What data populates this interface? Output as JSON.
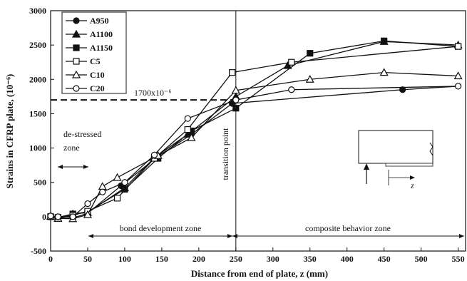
{
  "chart_data": {
    "type": "line",
    "title": "",
    "xlabel": "Distance from end of plate, z (mm)",
    "ylabel": "Strains in CFRP plate, (10⁻⁶)",
    "xlim": [
      0,
      560
    ],
    "ylim": [
      -500,
      3000
    ],
    "xticks": [
      "0",
      "50",
      "100",
      "150",
      "200",
      "250",
      "300",
      "350",
      "400",
      "450",
      "500",
      "550"
    ],
    "yticks": [
      "-500",
      "0",
      "500",
      "1000",
      "1500",
      "2000",
      "2500",
      "3000"
    ],
    "legend_position": "top-left",
    "series": [
      {
        "name": "A950",
        "marker": "filled-circle",
        "x": [
          0,
          10,
          30,
          50,
          95,
          145,
          190,
          245,
          475,
          550
        ],
        "y": [
          10,
          -20,
          -20,
          50,
          450,
          880,
          1200,
          1650,
          1850,
          1900
        ]
      },
      {
        "name": "A1100",
        "marker": "filled-triangle",
        "x": [
          0,
          10,
          30,
          50,
          100,
          140,
          185,
          250,
          320,
          450,
          550
        ],
        "y": [
          5,
          -25,
          40,
          60,
          420,
          860,
          1200,
          1750,
          2200,
          2550,
          2500
        ]
      },
      {
        "name": "A1150",
        "marker": "filled-square",
        "x": [
          0,
          10,
          30,
          50,
          100,
          145,
          190,
          250,
          350,
          450,
          550
        ],
        "y": [
          0,
          -10,
          40,
          70,
          400,
          850,
          1250,
          1580,
          2380,
          2560,
          2480
        ]
      },
      {
        "name": "C5",
        "marker": "open-square",
        "x": [
          0,
          10,
          30,
          50,
          90,
          140,
          185,
          245,
          325,
          550
        ],
        "y": [
          0,
          -20,
          20,
          80,
          270,
          850,
          1270,
          2100,
          2250,
          2480
        ]
      },
      {
        "name": "C10",
        "marker": "open-triangle",
        "x": [
          0,
          10,
          30,
          50,
          70,
          90,
          145,
          190,
          250,
          350,
          450,
          550
        ],
        "y": [
          5,
          -25,
          -30,
          30,
          440,
          570,
          890,
          1150,
          1840,
          2000,
          2100,
          2050
        ]
      },
      {
        "name": "C20",
        "marker": "open-circle",
        "x": [
          0,
          10,
          30,
          50,
          70,
          100,
          140,
          185,
          250,
          325,
          550
        ],
        "y": [
          10,
          0,
          0,
          190,
          360,
          500,
          900,
          1430,
          1700,
          1850,
          1900
        ]
      }
    ],
    "reference_line": {
      "y": 1700,
      "label": "1700x10⁻⁶"
    },
    "vertical_line": {
      "x": 250,
      "label": "transition point"
    },
    "annotations": {
      "destressed": [
        "de-stressed",
        "zone"
      ],
      "bond": "bond development zone",
      "composite": "composite behavior zone",
      "inset_z": "z"
    }
  }
}
